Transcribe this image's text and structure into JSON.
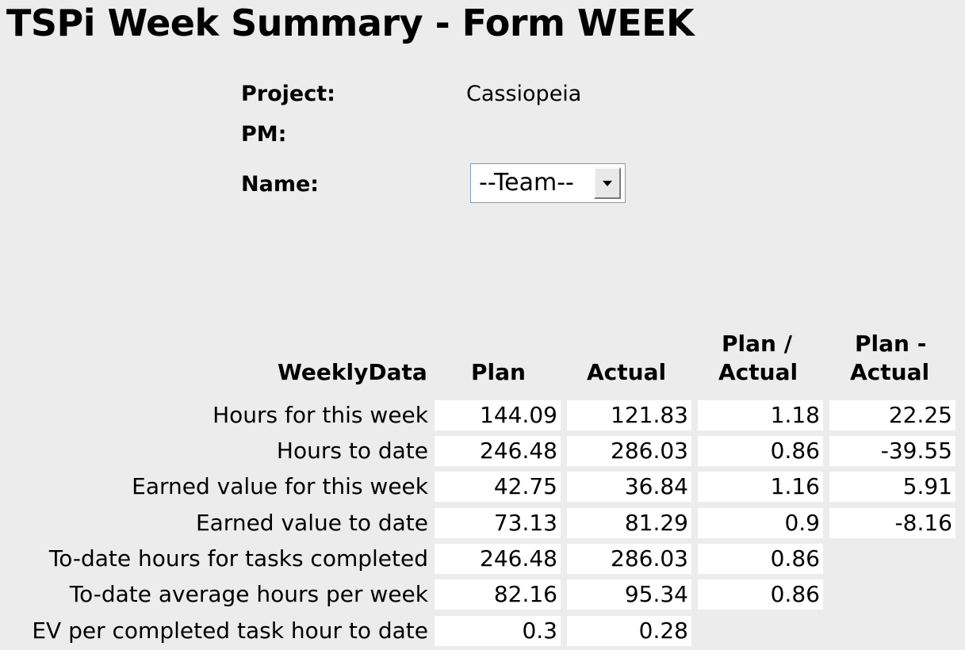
{
  "page": {
    "title": "TSPi Week Summary - Form WEEK"
  },
  "info": {
    "project_label": "Project:",
    "project_value": "Cassiopeia",
    "pm_label": "PM:",
    "name_label": "Name:",
    "name_select_value": "--Team--"
  },
  "table": {
    "headers": {
      "weekly_data": "WeeklyData",
      "plan": "Plan",
      "actual": "Actual",
      "plan_over_actual_line1": "Plan /",
      "plan_over_actual_line2": "Actual",
      "plan_minus_actual_line1": "Plan -",
      "plan_minus_actual_line2": "Actual"
    },
    "rows": [
      {
        "label": "Hours for this week",
        "plan": "144.09",
        "actual": "121.83",
        "ratio": "1.18",
        "diff": "22.25"
      },
      {
        "label": "Hours to date",
        "plan": "246.48",
        "actual": "286.03",
        "ratio": "0.86",
        "diff": "-39.55"
      },
      {
        "label": "Earned value for this week",
        "plan": "42.75",
        "actual": "36.84",
        "ratio": "1.16",
        "diff": "5.91"
      },
      {
        "label": "Earned value to date",
        "plan": "73.13",
        "actual": "81.29",
        "ratio": "0.9",
        "diff": "-8.16"
      },
      {
        "label": "To-date hours for tasks completed",
        "plan": "246.48",
        "actual": "286.03",
        "ratio": "0.86"
      },
      {
        "label": "To-date average hours per week",
        "plan": "82.16",
        "actual": "95.34",
        "ratio": "0.86"
      },
      {
        "label": "EV per completed task hour to date",
        "plan": "0.3",
        "actual": "0.28"
      }
    ]
  },
  "icons": {
    "select_arrow": "chevron-down-icon"
  }
}
